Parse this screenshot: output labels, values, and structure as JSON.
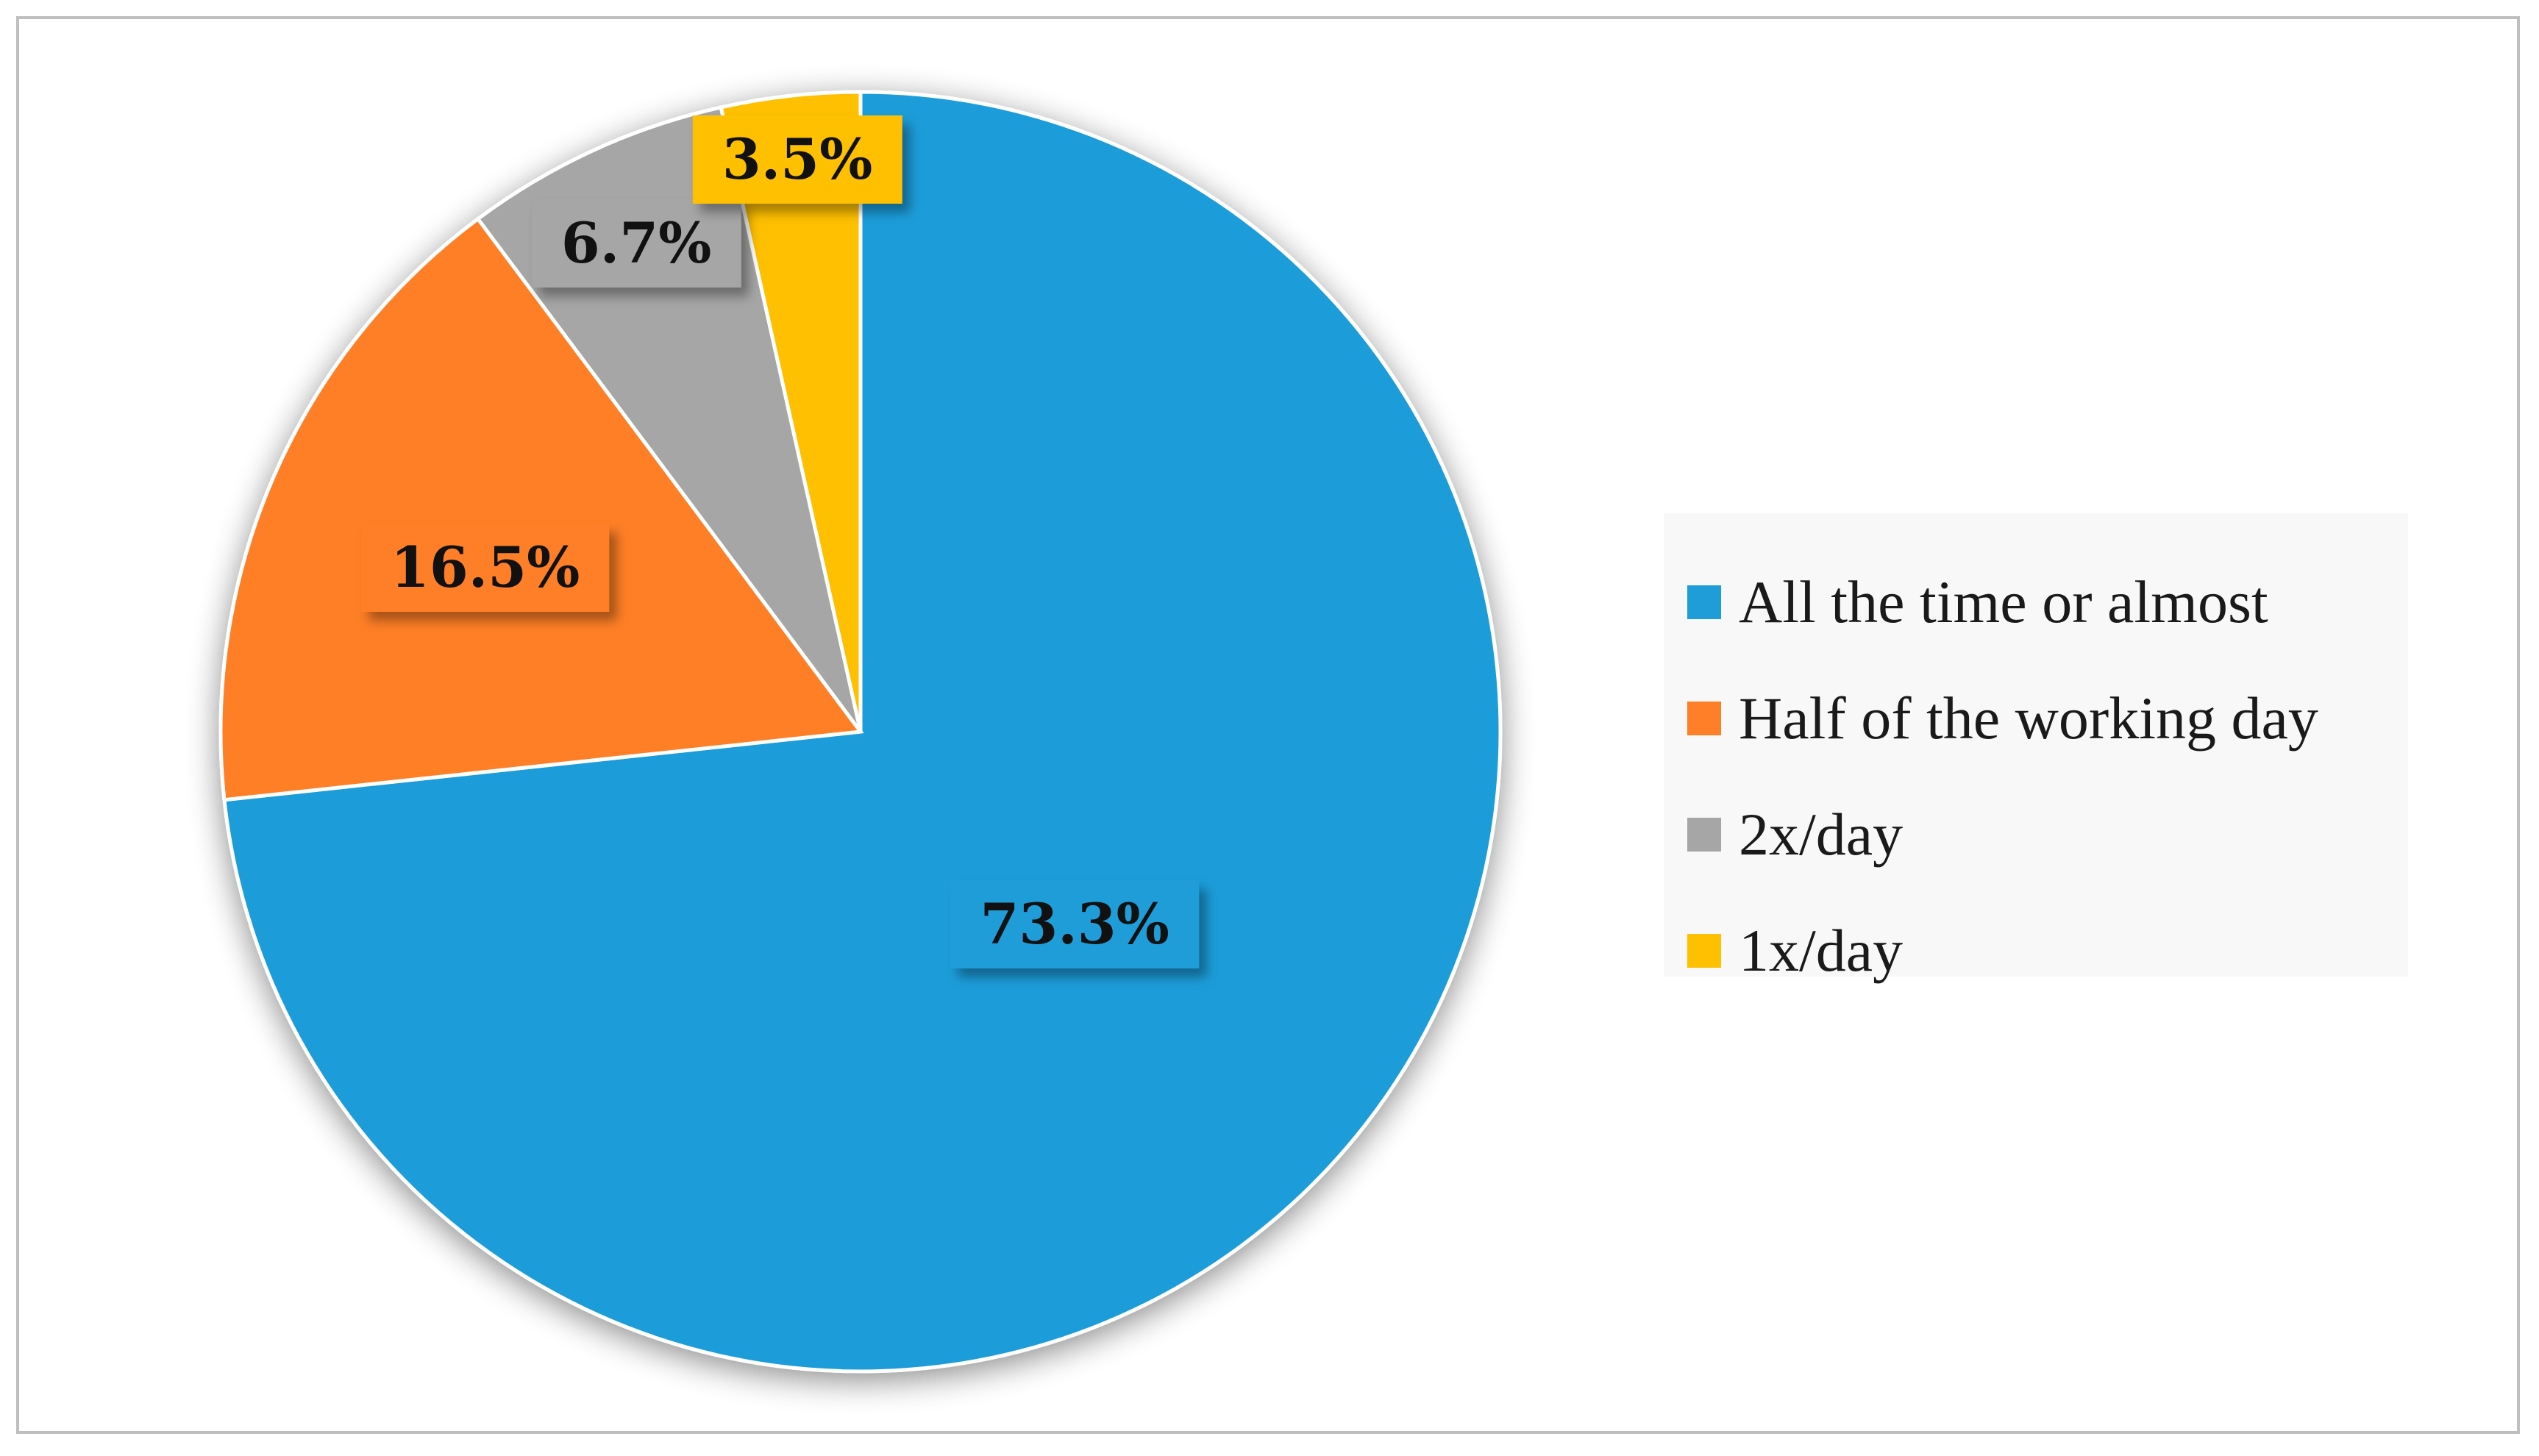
{
  "chart_data": {
    "type": "pie",
    "categories": [
      "All the time or almost",
      "Half of the working day",
      "2x/day",
      "1x/day"
    ],
    "values": [
      73.3,
      16.5,
      6.7,
      3.5
    ],
    "labels": [
      "73.3%",
      "16.5%",
      "6.7%",
      "3.5%"
    ],
    "colors": [
      "#1f9dd9",
      "#fe7f27",
      "#a6a6a6",
      "#fec000"
    ],
    "title": "",
    "legend_position": "right",
    "start_angle": "12 o'clock",
    "direction": "clockwise"
  }
}
